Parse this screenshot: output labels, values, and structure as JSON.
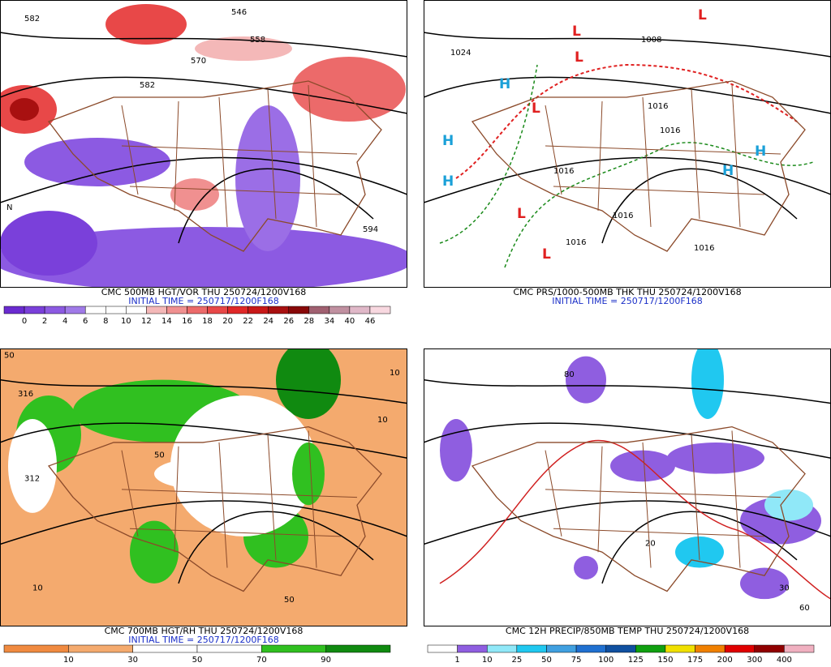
{
  "panels": [
    {
      "caption": "CMC 500MB HGT/VOR THU 250724/1200V168",
      "initial": "INITIAL TIME = 250717/1200F168",
      "colorbar": {
        "labels": [
          "0",
          "2",
          "4",
          "6",
          "8",
          "10",
          "12",
          "14",
          "16",
          "18",
          "20",
          "22",
          "24",
          "26",
          "28",
          "34",
          "40",
          "46"
        ],
        "colors": [
          "#6a2bd0",
          "#7a40da",
          "#8c5ae2",
          "#a07ae8",
          "#ffffff",
          "#ffffff",
          "#ffffff",
          "#f4b8b8",
          "#f09090",
          "#ec6a6a",
          "#e84848",
          "#e02828",
          "#c81818",
          "#a81010",
          "#880808",
          "#a06070",
          "#c090a0",
          "#e0b8c8",
          "#f8d8e0"
        ]
      },
      "labels": [
        "582",
        "570",
        "558",
        "546",
        "582",
        "594",
        "N"
      ]
    },
    {
      "caption": "CMC PRS/1000-500MB THK THU 250724/1200V168",
      "initial": "INITIAL TIME = 250717/1200F168",
      "labels": [
        "1024",
        "1008",
        "1016",
        "1016",
        "1016",
        "1016",
        "1016",
        "1016",
        "H",
        "H",
        "H",
        "H",
        "H",
        "L",
        "L",
        "L",
        "L",
        "L",
        "L"
      ]
    },
    {
      "caption": "CMC 700MB HGT/RH THU 250724/1200V168",
      "initial": "INITIAL TIME = 250717/1200F168",
      "colorbar": {
        "labels": [
          "10",
          "30",
          "50",
          "70",
          "90"
        ],
        "colors": [
          "#f08a40",
          "#f4aa6e",
          "#ffffff",
          "#ffffff",
          "#30c020",
          "#108a10"
        ]
      },
      "labels": [
        "50",
        "316",
        "312",
        "10",
        "10",
        "50",
        "50",
        "10"
      ]
    },
    {
      "caption": "CMC 12H PRECIP/850MB TEMP THU 250724/1200V168",
      "initial": "",
      "colorbar": {
        "labels": [
          "1",
          "10",
          "25",
          "50",
          "75",
          "100",
          "125",
          "150",
          "175",
          "200",
          "300",
          "400"
        ],
        "colors": [
          "#ffffff",
          "#8f5ee0",
          "#90e8f8",
          "#20c8f0",
          "#40a0e0",
          "#2070d0",
          "#1050a0",
          "#10a010",
          "#f0e000",
          "#f08000",
          "#e00000",
          "#900000",
          "#f0b0c0"
        ]
      },
      "labels": [
        "80",
        "20",
        "30",
        "60"
      ]
    }
  ]
}
